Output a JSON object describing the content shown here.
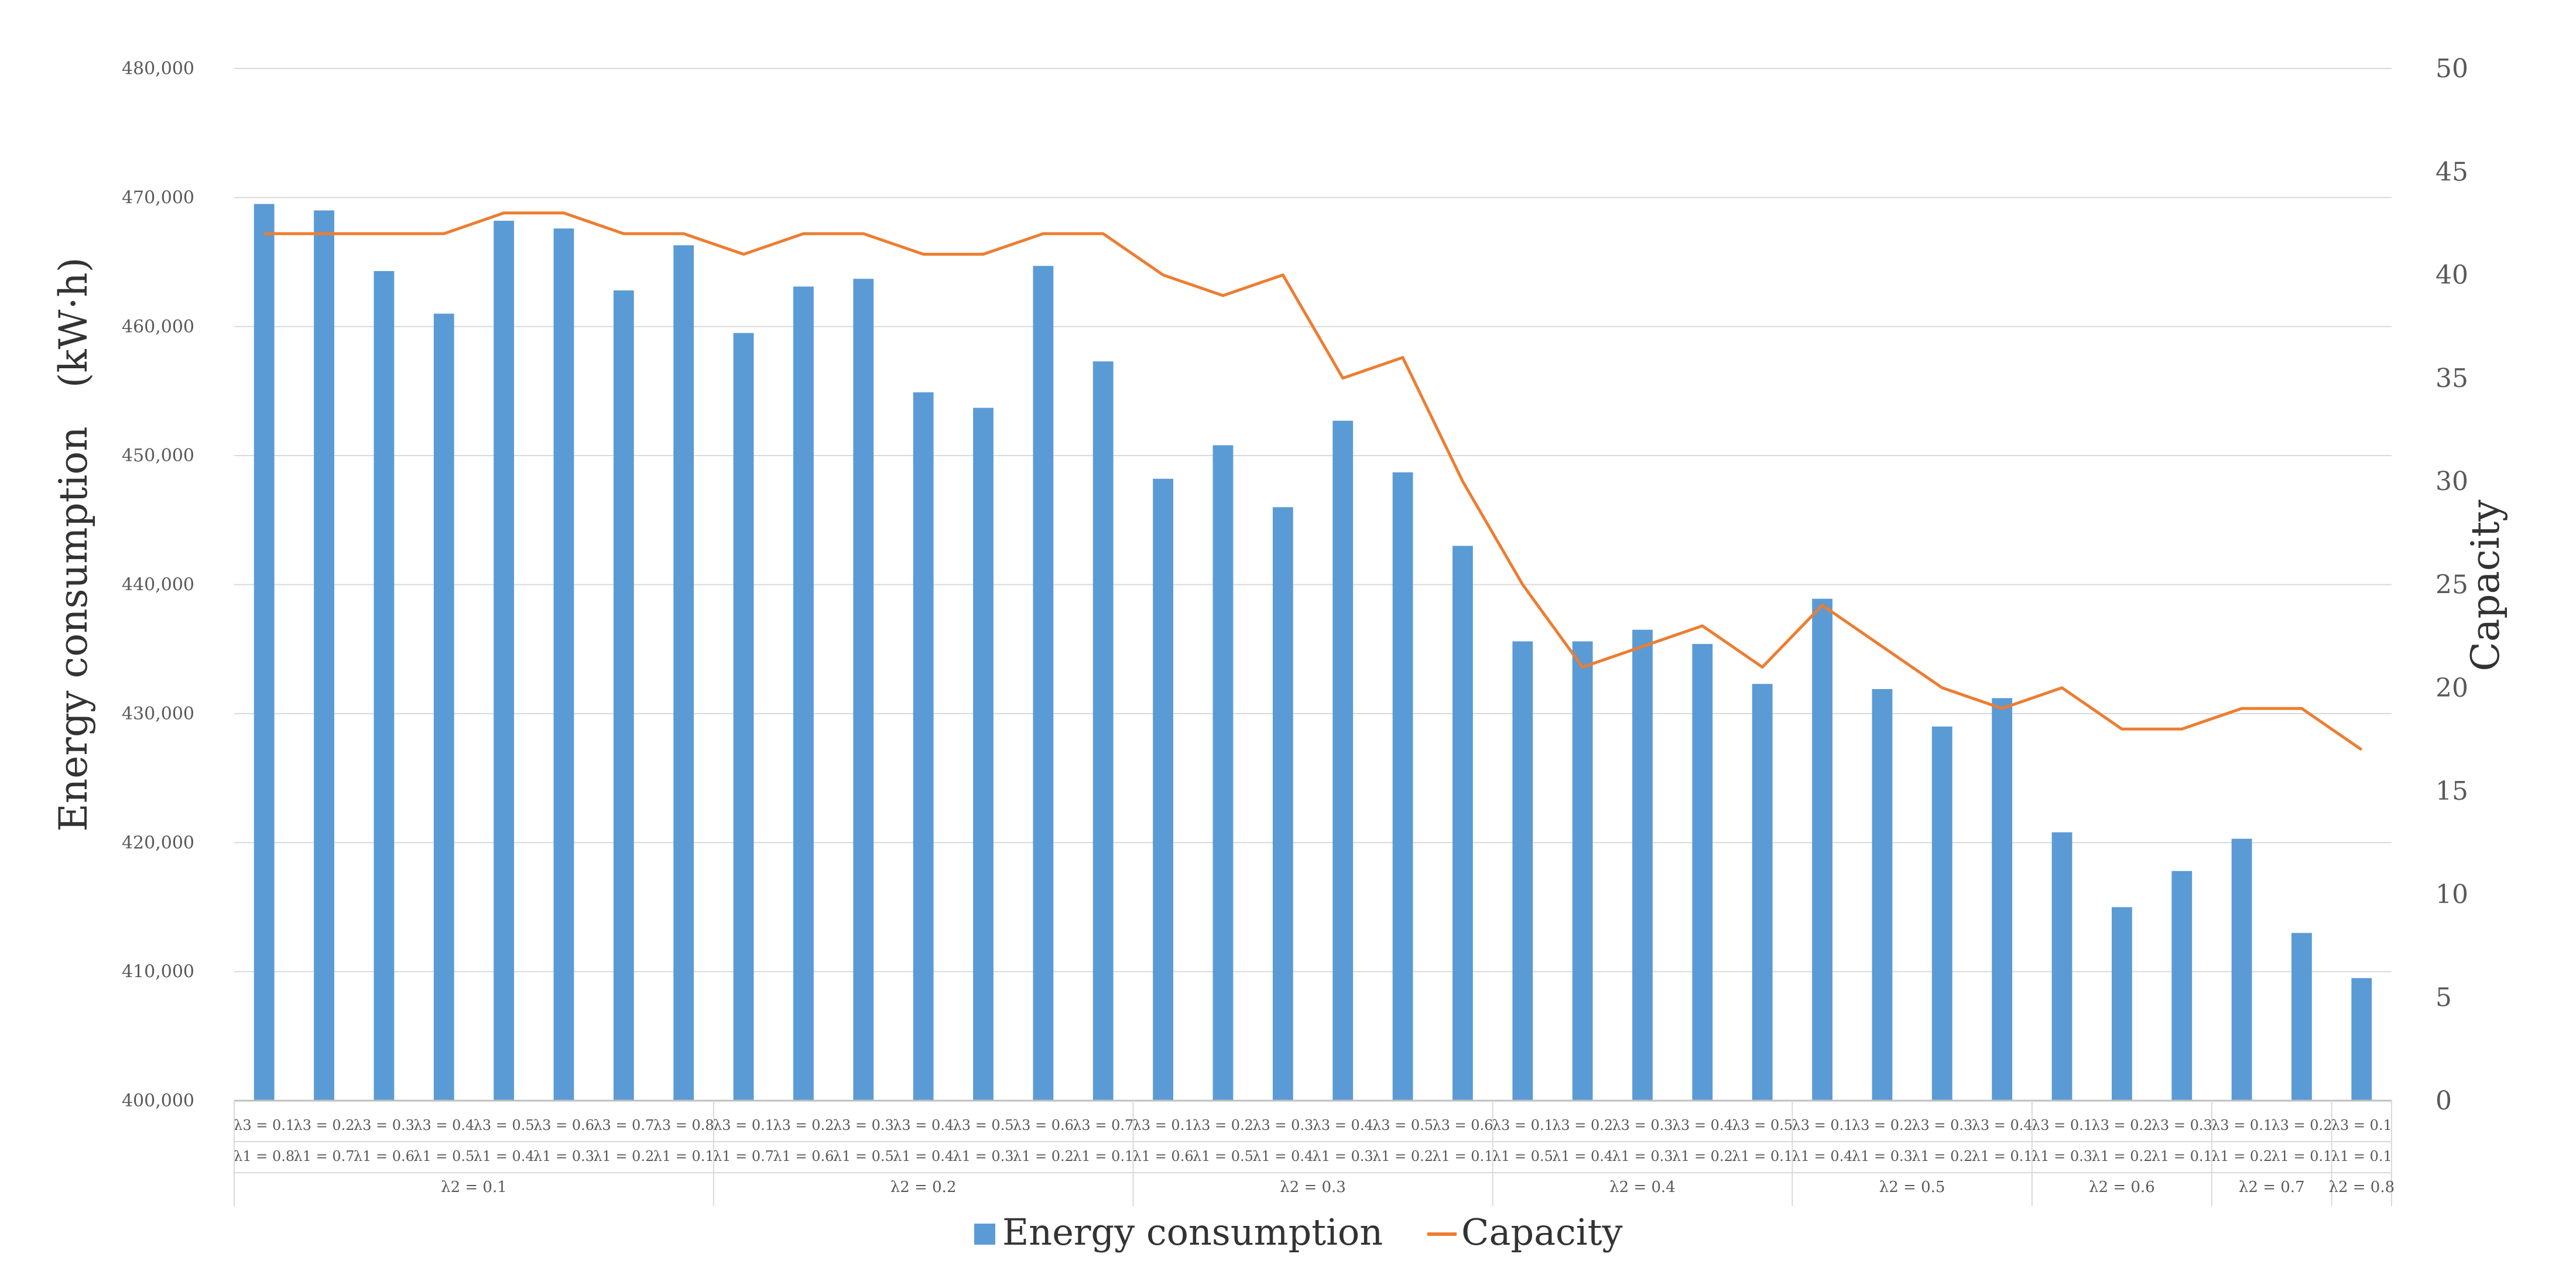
{
  "chart_data": {
    "type": "bar+line",
    "title": "",
    "ylabel": "Energy consumption　(kW·h)",
    "y2label": "Capacity",
    "ylim": [
      400000,
      480000
    ],
    "y2lim": [
      0,
      50
    ],
    "yticks": [
      "400,000",
      "410,000",
      "420,000",
      "430,000",
      "440,000",
      "450,000",
      "460,000",
      "470,000",
      "480,000"
    ],
    "y2ticks": [
      "0",
      "5",
      "10",
      "15",
      "20",
      "25",
      "30",
      "35",
      "40",
      "45",
      "50"
    ],
    "grid": true,
    "legend": [
      "Energy consumption",
      "Capacity"
    ],
    "colors": {
      "bar": "#5b9bd5",
      "line": "#ed7d31",
      "grid": "#d9d9d9",
      "axis": "#bfbfbf"
    },
    "categories_l3": [
      "λ3 = 0.1",
      "λ3 = 0.2",
      "λ3 = 0.3",
      "λ3 = 0.4",
      "λ3 = 0.5",
      "λ3 = 0.6",
      "λ3 = 0.7",
      "λ3 = 0.8",
      "λ3 = 0.1",
      "λ3 = 0.2",
      "λ3 = 0.3",
      "λ3 = 0.4",
      "λ3 = 0.5",
      "λ3 = 0.6",
      "λ3 = 0.7",
      "λ3 = 0.1",
      "λ3 = 0.2",
      "λ3 = 0.3",
      "λ3 = 0.4",
      "λ3 = 0.5",
      "λ3 = 0.6",
      "λ3 = 0.1",
      "λ3 = 0.2",
      "λ3 = 0.3",
      "λ3 = 0.4",
      "λ3 = 0.5",
      "λ3 = 0.1",
      "λ3 = 0.2",
      "λ3 = 0.3",
      "λ3 = 0.4",
      "λ3 = 0.1",
      "λ3 = 0.2",
      "λ3 = 0.3",
      "λ3 = 0.1",
      "λ3 = 0.2",
      "λ3 = 0.1"
    ],
    "categories_l1": [
      "λ1 = 0.8",
      "λ1 = 0.7",
      "λ1 = 0.6",
      "λ1 = 0.5",
      "λ1 = 0.4",
      "λ1 = 0.3",
      "λ1 = 0.2",
      "λ1 = 0.1",
      "λ1 = 0.7",
      "λ1 = 0.6",
      "λ1 = 0.5",
      "λ1 = 0.4",
      "λ1 = 0.3",
      "λ1 = 0.2",
      "λ1 = 0.1",
      "λ1 = 0.6",
      "λ1 = 0.5",
      "λ1 = 0.4",
      "λ1 = 0.3",
      "λ1 = 0.2",
      "λ1 = 0.1",
      "λ1 = 0.5",
      "λ1 = 0.4",
      "λ1 = 0.3",
      "λ1 = 0.2",
      "λ1 = 0.1",
      "λ1 = 0.4",
      "λ1 = 0.3",
      "λ1 = 0.2",
      "λ1 = 0.1",
      "λ1 = 0.3",
      "λ1 = 0.2",
      "λ1 = 0.1",
      "λ1 = 0.2",
      "λ1 = 0.1",
      "λ1 = 0.1"
    ],
    "groups": [
      {
        "label": "λ2 = 0.1",
        "count": 8
      },
      {
        "label": "λ2 = 0.2",
        "count": 7
      },
      {
        "label": "λ2 = 0.3",
        "count": 6
      },
      {
        "label": "λ2 = 0.4",
        "count": 5
      },
      {
        "label": "λ2 = 0.5",
        "count": 4
      },
      {
        "label": "λ2 = 0.6",
        "count": 3
      },
      {
        "label": "λ2 = 0.7",
        "count": 2
      },
      {
        "label": "λ2 = 0.8",
        "count": 1
      }
    ],
    "series": [
      {
        "name": "Energy consumption",
        "type": "bar",
        "axis": "left",
        "values": [
          469500,
          469000,
          464300,
          461000,
          468200,
          467600,
          462800,
          466300,
          459500,
          463100,
          463700,
          454900,
          453700,
          464700,
          457300,
          448200,
          450800,
          446000,
          452700,
          448700,
          443000,
          435600,
          435600,
          436500,
          435400,
          432300,
          438900,
          431900,
          429000,
          431200,
          420800,
          415000,
          417800,
          420300,
          413000,
          409500
        ]
      },
      {
        "name": "Capacity",
        "type": "line",
        "axis": "right",
        "values": [
          42,
          42,
          42,
          42,
          43,
          43,
          42,
          42,
          41,
          42,
          42,
          41,
          41,
          42,
          42,
          40,
          39,
          40,
          35,
          36,
          30,
          25,
          21,
          22,
          23,
          21,
          24,
          22,
          20,
          19,
          20,
          18,
          18,
          19,
          19,
          17
        ]
      }
    ]
  }
}
